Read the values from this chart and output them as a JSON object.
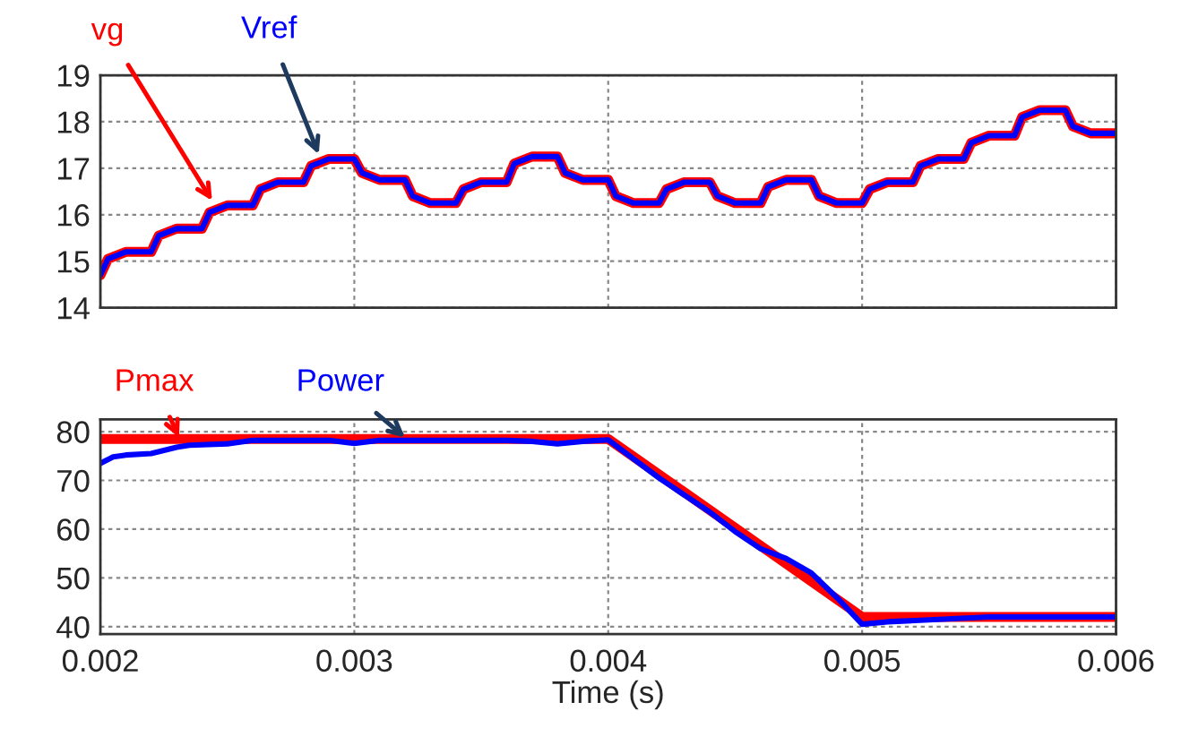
{
  "chart_data": [
    {
      "type": "line",
      "xlim": [
        0.002,
        0.006
      ],
      "xticks": [
        0.002,
        0.003,
        0.004,
        0.005,
        0.006
      ],
      "ylim": [
        14,
        19
      ],
      "yticks": [
        14,
        15,
        16,
        17,
        18,
        19
      ],
      "grid": true,
      "tick_labels": "y",
      "x": [
        0.002,
        0.00203,
        0.0021,
        0.0022,
        0.00223,
        0.0023,
        0.0024,
        0.00243,
        0.0025,
        0.0026,
        0.00263,
        0.0027,
        0.0028,
        0.00283,
        0.0029,
        0.003,
        0.00303,
        0.0031,
        0.0032,
        0.00323,
        0.0033,
        0.0034,
        0.00343,
        0.0035,
        0.0036,
        0.00363,
        0.0037,
        0.0038,
        0.00383,
        0.0039,
        0.004,
        0.00403,
        0.0041,
        0.0042,
        0.00423,
        0.0043,
        0.0044,
        0.00443,
        0.0045,
        0.0046,
        0.00463,
        0.0047,
        0.0048,
        0.00483,
        0.0049,
        0.005,
        0.00503,
        0.0051,
        0.0052,
        0.00523,
        0.0053,
        0.0054,
        0.00543,
        0.0055,
        0.0056,
        0.00563,
        0.0057,
        0.0058,
        0.00583,
        0.0059,
        0.006
      ],
      "series": [
        {
          "color": "#ff0000",
          "values": [
            14.7,
            15.05,
            15.2,
            15.2,
            15.55,
            15.7,
            15.7,
            16.05,
            16.2,
            16.2,
            16.55,
            16.7,
            16.7,
            17.05,
            17.2,
            17.2,
            16.9,
            16.75,
            16.75,
            16.4,
            16.25,
            16.25,
            16.55,
            16.7,
            16.7,
            17.1,
            17.25,
            17.25,
            16.9,
            16.75,
            16.75,
            16.4,
            16.25,
            16.25,
            16.55,
            16.7,
            16.7,
            16.4,
            16.25,
            16.25,
            16.6,
            16.75,
            16.75,
            16.4,
            16.25,
            16.25,
            16.55,
            16.7,
            16.7,
            17.05,
            17.2,
            17.2,
            17.55,
            17.7,
            17.7,
            18.1,
            18.25,
            18.25,
            17.9,
            17.75,
            17.75
          ]
        },
        {
          "color": "#0000ff",
          "values": [
            14.7,
            15.05,
            15.2,
            15.2,
            15.55,
            15.7,
            15.7,
            16.05,
            16.2,
            16.2,
            16.55,
            16.7,
            16.7,
            17.05,
            17.2,
            17.2,
            16.9,
            16.75,
            16.75,
            16.4,
            16.25,
            16.25,
            16.55,
            16.7,
            16.7,
            17.1,
            17.25,
            17.25,
            16.9,
            16.75,
            16.75,
            16.4,
            16.25,
            16.25,
            16.55,
            16.7,
            16.7,
            16.4,
            16.25,
            16.25,
            16.6,
            16.75,
            16.75,
            16.4,
            16.25,
            16.25,
            16.55,
            16.7,
            16.7,
            17.05,
            17.2,
            17.2,
            17.55,
            17.7,
            17.7,
            18.1,
            18.25,
            18.25,
            17.9,
            17.75,
            17.75
          ]
        }
      ],
      "annotations": [
        {
          "text": "vg",
          "x": 0.00244,
          "y": 16.3
        },
        {
          "text": "Vref",
          "x": 0.00286,
          "y": 17.3
        }
      ]
    },
    {
      "type": "line",
      "xlim": [
        0.002,
        0.006
      ],
      "xticks": [
        {
          "value": 0.002,
          "label": "0.002"
        },
        {
          "value": 0.003,
          "label": "0.003"
        },
        {
          "value": 0.004,
          "label": "0.004"
        },
        {
          "value": 0.005,
          "label": "0.005"
        },
        {
          "value": 0.006,
          "label": "0.006"
        }
      ],
      "ylim": [
        38.5,
        82.5
      ],
      "yticks": [
        40,
        50,
        60,
        70,
        80
      ],
      "grid": true,
      "xlabel": "Time (s)",
      "series": [
        {
          "color": "#ff0000",
          "x": [
            0.002,
            0.004,
            0.005,
            0.006
          ],
          "values": [
            78.5,
            78.5,
            42,
            42
          ]
        },
        {
          "color": "#0000ff",
          "x": [
            0.002,
            0.00205,
            0.0021,
            0.0022,
            0.0023,
            0.00235,
            0.0025,
            0.0026,
            0.0029,
            0.003,
            0.0031,
            0.0036,
            0.0037,
            0.0038,
            0.0039,
            0.004,
            0.0042,
            0.0044,
            0.0045,
            0.0046,
            0.0047,
            0.0048,
            0.0049,
            0.005,
            0.0051,
            0.0053,
            0.0055,
            0.006
          ],
          "values": [
            73.5,
            74.8,
            75.2,
            75.5,
            76.8,
            77.2,
            77.5,
            78.2,
            78.2,
            77.6,
            78.2,
            78.2,
            78,
            77.5,
            78,
            78.3,
            70.5,
            63.5,
            59.5,
            56,
            54,
            51,
            46,
            40.5,
            41,
            41.5,
            42,
            42
          ]
        }
      ],
      "annotations": [
        {
          "text": "Pmax",
          "x": 0.00231,
          "y": 78.8
        },
        {
          "text": "Power",
          "x": 0.0032,
          "y": 78.8
        }
      ]
    }
  ]
}
